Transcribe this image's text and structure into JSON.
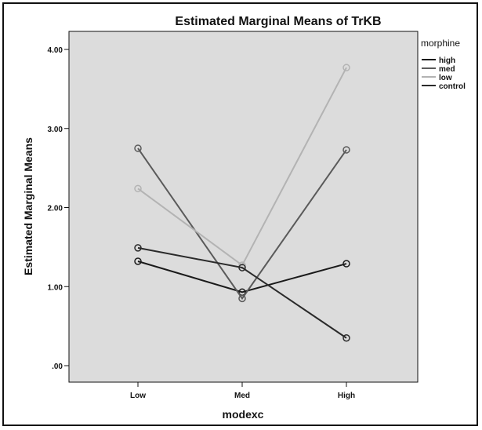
{
  "chart_data": {
    "type": "line",
    "title": "Estimated Marginal Means of TrKB",
    "xlabel": "modexc",
    "ylabel": "Estimated Marginal Means",
    "categories": [
      "Low",
      "Med",
      "High"
    ],
    "ylim": [
      0,
      4.2
    ],
    "yticks": [
      0,
      1,
      2,
      3,
      4
    ],
    "ytick_labels": [
      ".00",
      "1.00",
      "2.00",
      "3.00",
      "4.00"
    ],
    "grid": false,
    "legend_title": "morphine",
    "legend_position": "right",
    "plot_background": "#dcdcdc",
    "series": [
      {
        "name": "high",
        "color": "#1a1a1a",
        "values": [
          1.32,
          0.93,
          1.29
        ]
      },
      {
        "name": "med",
        "color": "#5a5a5a",
        "values": [
          2.75,
          0.85,
          2.73
        ]
      },
      {
        "name": "low",
        "color": "#b3b3b3",
        "values": [
          2.24,
          1.27,
          3.77
        ]
      },
      {
        "name": "control",
        "color": "#2a2a2a",
        "values": [
          1.49,
          1.24,
          0.35
        ]
      }
    ]
  }
}
